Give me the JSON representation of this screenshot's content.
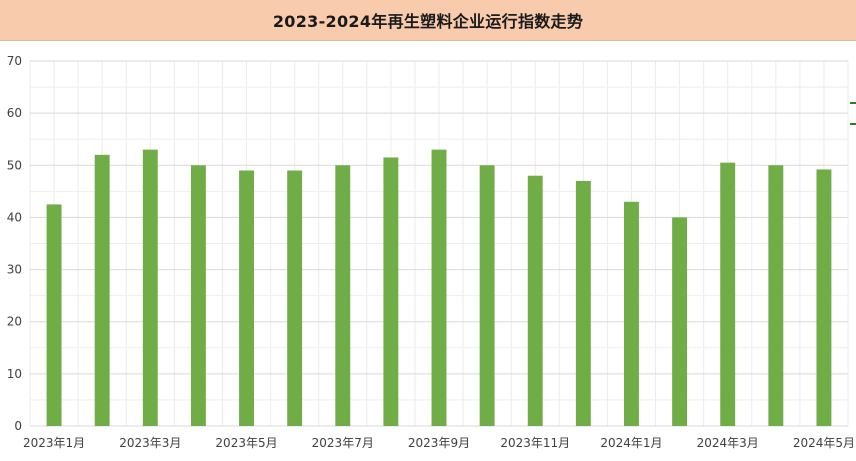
{
  "chart_data": {
    "type": "bar",
    "title": "2023-2024年再生塑料企业运行指数走势",
    "xlabel": "",
    "ylabel": "",
    "ylim": [
      0,
      70
    ],
    "yticks": [
      0,
      10,
      20,
      30,
      40,
      50,
      60,
      70
    ],
    "grid": true,
    "legend": "none",
    "bar_color": "#70ad47",
    "categories": [
      "2023年1月",
      "2023年2月",
      "2023年3月",
      "2023年4月",
      "2023年5月",
      "2023年6月",
      "2023年7月",
      "2023年8月",
      "2023年9月",
      "2023年10月",
      "2023年11月",
      "2023年12月",
      "2024年1月",
      "2024年2月",
      "2024年3月",
      "2024年4月",
      "2024年5月"
    ],
    "x_tick_labels": [
      "2023年1月",
      "2023年3月",
      "2023年5月",
      "2023年7月",
      "2023年9月",
      "2023年11月",
      "2024年1月",
      "2024年3月",
      "2024年5月"
    ],
    "values": [
      42.5,
      52,
      53,
      50,
      49,
      49,
      50,
      51.5,
      53,
      50,
      48,
      47,
      43,
      40,
      50.5,
      50,
      49.2
    ]
  }
}
